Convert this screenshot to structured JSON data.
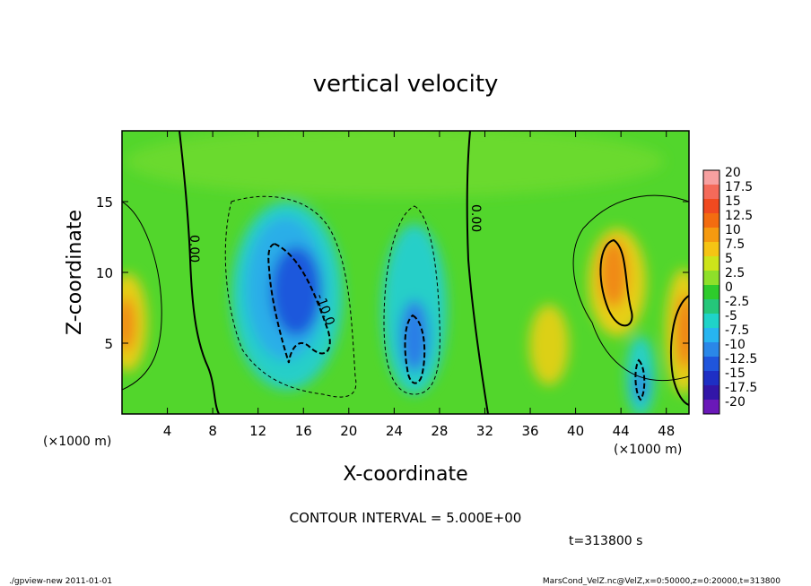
{
  "chart_data": {
    "type": "heatmap",
    "title": "vertical velocity",
    "xlabel": "X-coordinate",
    "ylabel": "Z-coordinate",
    "x_unit_label": "(×1000 m)",
    "y_unit_label": "(×1000 m)",
    "xlim": [
      0,
      50
    ],
    "ylim": [
      0,
      20
    ],
    "x_ticks": [
      "4",
      "8",
      "12",
      "16",
      "20",
      "24",
      "28",
      "32",
      "36",
      "40",
      "44",
      "48"
    ],
    "y_ticks": [
      "5",
      "10",
      "15"
    ],
    "contour_interval_text": "CONTOUR INTERVAL = 5.000E+00",
    "contour_labels": [
      "0.00",
      "0.00",
      "-10.0"
    ],
    "colorbar": {
      "levels": [
        "20",
        "17.5",
        "15",
        "12.5",
        "10",
        "7.5",
        "5",
        "2.5",
        "0",
        "-2.5",
        "-5",
        "-7.5",
        "-10",
        "-12.5",
        "-15",
        "-17.5",
        "-20"
      ],
      "colors": [
        "#f7a0a0",
        "#f46a5a",
        "#f04a20",
        "#f36c10",
        "#f59a10",
        "#f5c414",
        "#cde41a",
        "#8ee02a",
        "#2ecb2c",
        "#25c77a",
        "#1fd3c8",
        "#27b5f0",
        "#2a87e8",
        "#1f55dc",
        "#1e2fc4",
        "#3216a8",
        "#6a18b8"
      ]
    },
    "regions": [
      {
        "sign": "negative",
        "x": 16,
        "z": 9,
        "peak": -15
      },
      {
        "sign": "negative",
        "x": 26,
        "z": 6,
        "peak": -12.5
      },
      {
        "sign": "negative",
        "x": 45.7,
        "z": 2.5,
        "peak": -12.5
      },
      {
        "sign": "positive",
        "x": 43.8,
        "z": 10,
        "peak": 12.5
      },
      {
        "sign": "positive",
        "x": 49.5,
        "z": 6,
        "peak": 12.5
      },
      {
        "sign": "positive",
        "x": 0.3,
        "z": 6.5,
        "peak": 12.5
      },
      {
        "sign": "positive",
        "x": 38,
        "z": 5,
        "peak": 10
      }
    ]
  },
  "time_label": "t=313800 s",
  "footer": {
    "left": "./gpview-new   2011-01-01",
    "right": "MarsCond_VelZ.nc@VelZ,x=0:50000,z=0:20000,t=313800"
  }
}
